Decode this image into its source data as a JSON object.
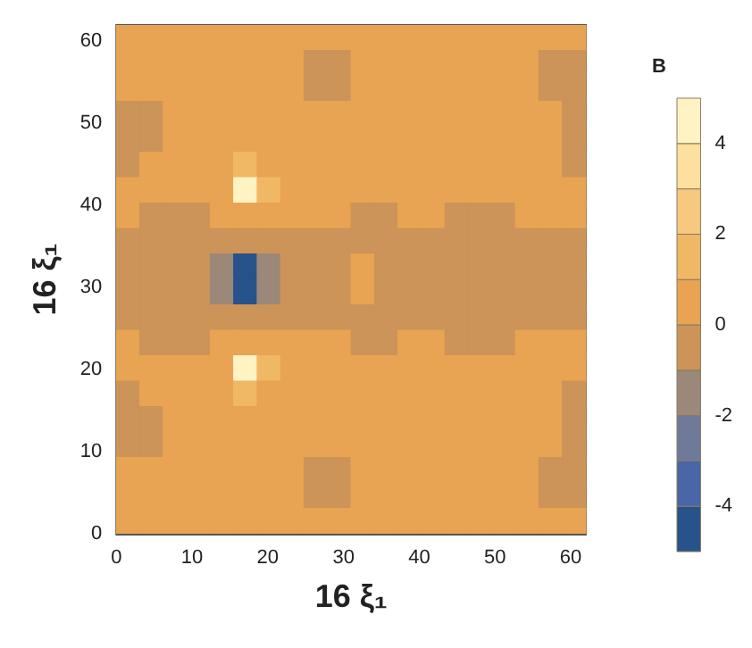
{
  "chart_data": {
    "type": "heatmap",
    "xlabel": "16 ξ₁",
    "ylabel": "16 ξ₁",
    "clabel": "B",
    "xlim": [
      0,
      62
    ],
    "ylim": [
      0,
      62
    ],
    "xticks": [
      0,
      10,
      20,
      30,
      40,
      50,
      60
    ],
    "yticks": [
      0,
      10,
      20,
      30,
      40,
      50,
      60
    ],
    "clim": [
      -5,
      5
    ],
    "cticks": [
      -4,
      -2,
      0,
      2,
      4
    ],
    "colors": [
      "#27538a",
      "#4866a8",
      "#6f7a99",
      "#9c8878",
      "#cc9458",
      "#e8a452",
      "#f0b865",
      "#f7c97f",
      "#fde0a0",
      "#fff3c4"
    ],
    "cells": [
      [
        0.5,
        0.5,
        0.5,
        0.5,
        0.5,
        0.5,
        0.5,
        0.5,
        0.5,
        0.5,
        0.5,
        0.5,
        0.5,
        0.5,
        0.5,
        0.5,
        0.5,
        0.5,
        0.5,
        0.5
      ],
      [
        0.5,
        0.5,
        0.5,
        0.5,
        0.5,
        0.5,
        0.5,
        0.5,
        -0.5,
        -0.5,
        0.5,
        0.5,
        0.5,
        0.5,
        0.5,
        0.5,
        0.5,
        0.5,
        -0.5,
        -0.5
      ],
      [
        0.5,
        0.5,
        0.5,
        0.5,
        0.5,
        0.5,
        0.5,
        0.5,
        -0.5,
        -0.5,
        0.5,
        0.5,
        0.5,
        0.5,
        0.5,
        0.5,
        0.5,
        0.5,
        -0.5,
        -0.5
      ],
      [
        -0.5,
        -0.5,
        0.5,
        0.5,
        0.5,
        0.5,
        0.5,
        0.5,
        0.5,
        0.5,
        0.5,
        0.5,
        0.5,
        0.5,
        0.5,
        0.5,
        0.5,
        0.5,
        0.5,
        -0.5
      ],
      [
        -0.5,
        -0.5,
        0.5,
        0.5,
        0.5,
        0.5,
        0.5,
        0.5,
        0.5,
        0.5,
        0.5,
        0.5,
        0.5,
        0.5,
        0.5,
        0.5,
        0.5,
        0.5,
        0.5,
        -0.5
      ],
      [
        -0.5,
        0.5,
        0.5,
        0.5,
        0.5,
        1.5,
        0.5,
        0.5,
        0.5,
        0.5,
        0.5,
        0.5,
        0.5,
        0.5,
        0.5,
        0.5,
        0.5,
        0.5,
        0.5,
        -0.5
      ],
      [
        0.5,
        0.5,
        0.5,
        0.5,
        0.5,
        4.5,
        1.5,
        0.5,
        0.5,
        0.5,
        0.5,
        0.5,
        0.5,
        0.5,
        0.5,
        0.5,
        0.5,
        0.5,
        0.5,
        0.5
      ],
      [
        0.5,
        -0.5,
        -0.5,
        -0.5,
        0.5,
        0.5,
        0.5,
        0.5,
        0.5,
        0.5,
        -0.5,
        -0.5,
        0.5,
        0.5,
        -0.5,
        -0.5,
        -0.5,
        0.5,
        0.5,
        0.5
      ],
      [
        -0.5,
        -0.5,
        -0.5,
        -0.5,
        -0.5,
        -0.5,
        -0.5,
        -0.5,
        -0.5,
        -0.5,
        -0.5,
        -0.5,
        -0.5,
        -0.5,
        -0.5,
        -0.5,
        -0.5,
        -0.5,
        -0.5,
        -0.5
      ],
      [
        -0.5,
        -0.5,
        -0.5,
        -0.5,
        -1.5,
        -4.5,
        -1.5,
        -0.5,
        -0.5,
        -0.5,
        0.5,
        -0.5,
        -0.5,
        -0.5,
        -0.5,
        -0.5,
        -0.5,
        -0.5,
        -0.5,
        -0.5
      ],
      [
        -0.5,
        -0.5,
        -0.5,
        -0.5,
        -1.5,
        -4.5,
        -1.5,
        -0.5,
        -0.5,
        -0.5,
        0.5,
        -0.5,
        -0.5,
        -0.5,
        -0.5,
        -0.5,
        -0.5,
        -0.5,
        -0.5,
        -0.5
      ],
      [
        -0.5,
        -0.5,
        -0.5,
        -0.5,
        -0.5,
        -0.5,
        -0.5,
        -0.5,
        -0.5,
        -0.5,
        -0.5,
        -0.5,
        -0.5,
        -0.5,
        -0.5,
        -0.5,
        -0.5,
        -0.5,
        -0.5,
        -0.5
      ],
      [
        0.5,
        -0.5,
        -0.5,
        -0.5,
        0.5,
        0.5,
        0.5,
        0.5,
        0.5,
        0.5,
        -0.5,
        -0.5,
        0.5,
        0.5,
        -0.5,
        -0.5,
        -0.5,
        0.5,
        0.5,
        0.5
      ],
      [
        0.5,
        0.5,
        0.5,
        0.5,
        0.5,
        4.5,
        1.5,
        0.5,
        0.5,
        0.5,
        0.5,
        0.5,
        0.5,
        0.5,
        0.5,
        0.5,
        0.5,
        0.5,
        0.5,
        0.5
      ],
      [
        -0.5,
        0.5,
        0.5,
        0.5,
        0.5,
        1.5,
        0.5,
        0.5,
        0.5,
        0.5,
        0.5,
        0.5,
        0.5,
        0.5,
        0.5,
        0.5,
        0.5,
        0.5,
        0.5,
        -0.5
      ],
      [
        -0.5,
        -0.5,
        0.5,
        0.5,
        0.5,
        0.5,
        0.5,
        0.5,
        0.5,
        0.5,
        0.5,
        0.5,
        0.5,
        0.5,
        0.5,
        0.5,
        0.5,
        0.5,
        0.5,
        -0.5
      ],
      [
        -0.5,
        -0.5,
        0.5,
        0.5,
        0.5,
        0.5,
        0.5,
        0.5,
        0.5,
        0.5,
        0.5,
        0.5,
        0.5,
        0.5,
        0.5,
        0.5,
        0.5,
        0.5,
        0.5,
        -0.5
      ],
      [
        0.5,
        0.5,
        0.5,
        0.5,
        0.5,
        0.5,
        0.5,
        0.5,
        -0.5,
        -0.5,
        0.5,
        0.5,
        0.5,
        0.5,
        0.5,
        0.5,
        0.5,
        0.5,
        -0.5,
        -0.5
      ],
      [
        0.5,
        0.5,
        0.5,
        0.5,
        0.5,
        0.5,
        0.5,
        0.5,
        -0.5,
        -0.5,
        0.5,
        0.5,
        0.5,
        0.5,
        0.5,
        0.5,
        0.5,
        0.5,
        -0.5,
        -0.5
      ],
      [
        0.5,
        0.5,
        0.5,
        0.5,
        0.5,
        0.5,
        0.5,
        0.5,
        0.5,
        0.5,
        0.5,
        0.5,
        0.5,
        0.5,
        0.5,
        0.5,
        0.5,
        0.5,
        0.5,
        0.5
      ]
    ]
  }
}
